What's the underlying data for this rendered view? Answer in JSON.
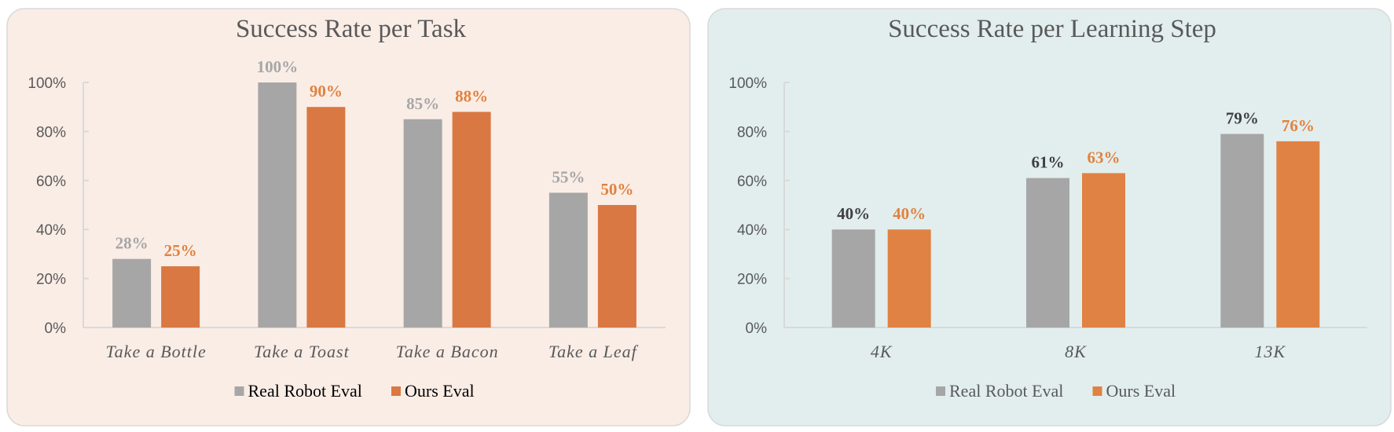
{
  "chart_data": [
    {
      "type": "bar",
      "title": "Success Rate per Task",
      "categories": [
        "Take a Bottle",
        "Take a Toast",
        "Take a Bacon",
        "Take a Leaf"
      ],
      "series": [
        {
          "name": "Real Robot Eval",
          "values": [
            28,
            100,
            85,
            55
          ],
          "labels": [
            "28%",
            "100%",
            "85%",
            "55%"
          ],
          "color": "#a6a6a6",
          "label_color": "#a6a6a6"
        },
        {
          "name": "Ours Eval",
          "values": [
            25,
            90,
            88,
            50
          ],
          "labels": [
            "25%",
            "90%",
            "88%",
            "50%"
          ],
          "color": "#d97843",
          "label_color": "#e0823f"
        }
      ],
      "yticks": [
        "0%",
        "20%",
        "40%",
        "60%",
        "80%",
        "100%"
      ],
      "ylim": [
        0,
        100
      ],
      "legend": "bottom",
      "background": "#faede6",
      "legend_text_color": "#000000"
    },
    {
      "type": "bar",
      "title": "Success Rate per Learning Step",
      "categories": [
        "4K",
        "8K",
        "13K"
      ],
      "series": [
        {
          "name": "Real Robot Eval",
          "values": [
            40,
            61,
            79
          ],
          "labels": [
            "40%",
            "61%",
            "79%"
          ],
          "color": "#a6a6a6",
          "label_color": "#404040"
        },
        {
          "name": "Ours Eval",
          "values": [
            40,
            63,
            76
          ],
          "labels": [
            "40%",
            "63%",
            "76%"
          ],
          "color": "#e08243",
          "label_color": "#e0823f"
        }
      ],
      "yticks": [
        "0%",
        "20%",
        "40%",
        "60%",
        "80%",
        "100%"
      ],
      "ylim": [
        0,
        100
      ],
      "legend": "bottom",
      "background": "#e2eeee",
      "legend_text_color": "#595959"
    }
  ]
}
